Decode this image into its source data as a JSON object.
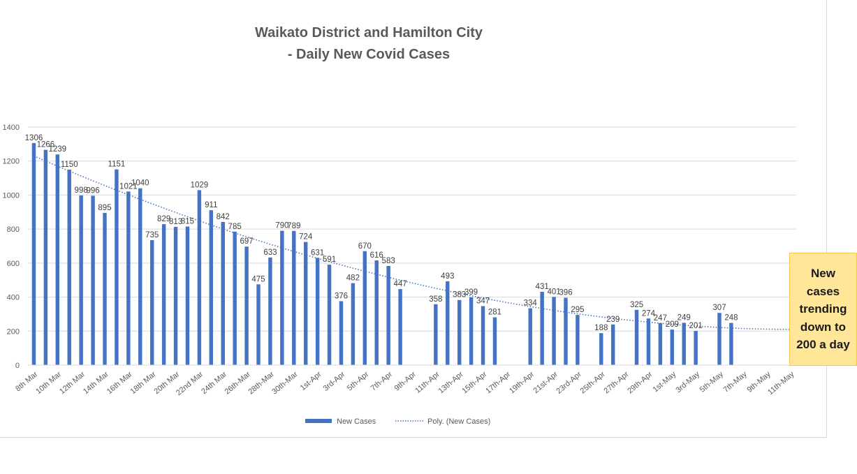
{
  "chart_data": {
    "type": "bar",
    "title_line1": "Waikato District and Hamilton City",
    "title_line2": "- Daily New Covid Cases",
    "xlabel": "",
    "ylabel": "",
    "ylim": [
      0,
      1400
    ],
    "yticks": [
      0,
      200,
      400,
      600,
      800,
      1000,
      1200,
      1400
    ],
    "ytick_labels": [
      "0",
      "200",
      "400",
      "600",
      "800",
      "1000",
      "1200",
      "1400"
    ],
    "grid": true,
    "legend_position": "bottom",
    "x_tick_labels": [
      "8th Mar",
      "10th Mar",
      "12th Mar",
      "14th Mar",
      "16th Mar",
      "18th Mar",
      "20th Mar",
      "22nd Mar",
      "24th Mar",
      "26th-Mar",
      "28th-Mar",
      "30th-Mar",
      "1st-Apr",
      "3rd-Apr",
      "5th-Apr",
      "7th-Apr",
      "9th-Apr",
      "11th-Apr",
      "13th-Apr",
      "15th-Apr",
      "17th-Apr",
      "19th-Apr",
      "21st-Apr",
      "23rd-Apr",
      "25th-Apr",
      "27th-Apr",
      "29th-Apr",
      "1st-May",
      "3rd-May",
      "5th-May",
      "7th-May",
      "9th-May",
      "11th-May"
    ],
    "series": [
      {
        "name": "New Cases",
        "color": "#4472c4",
        "values": [
          1306,
          1266,
          1239,
          1150,
          998,
          996,
          895,
          1151,
          1021,
          1040,
          735,
          829,
          813,
          815,
          1029,
          911,
          842,
          785,
          697,
          475,
          633,
          790,
          789,
          724,
          631,
          591,
          376,
          482,
          670,
          616,
          583,
          447,
          null,
          null,
          358,
          493,
          383,
          399,
          347,
          281,
          null,
          null,
          334,
          431,
          401,
          396,
          295,
          null,
          188,
          239,
          null,
          325,
          274,
          247,
          209,
          249,
          201,
          null,
          307,
          248,
          null,
          null,
          null,
          null,
          null
        ]
      },
      {
        "name": "Poly. (New Cases)",
        "color": "#4472c4",
        "style": "dotted",
        "start": 1230,
        "end": 210
      }
    ]
  },
  "callout": {
    "text": "New cases trending down to 200 a day",
    "background": "#ffe699"
  }
}
